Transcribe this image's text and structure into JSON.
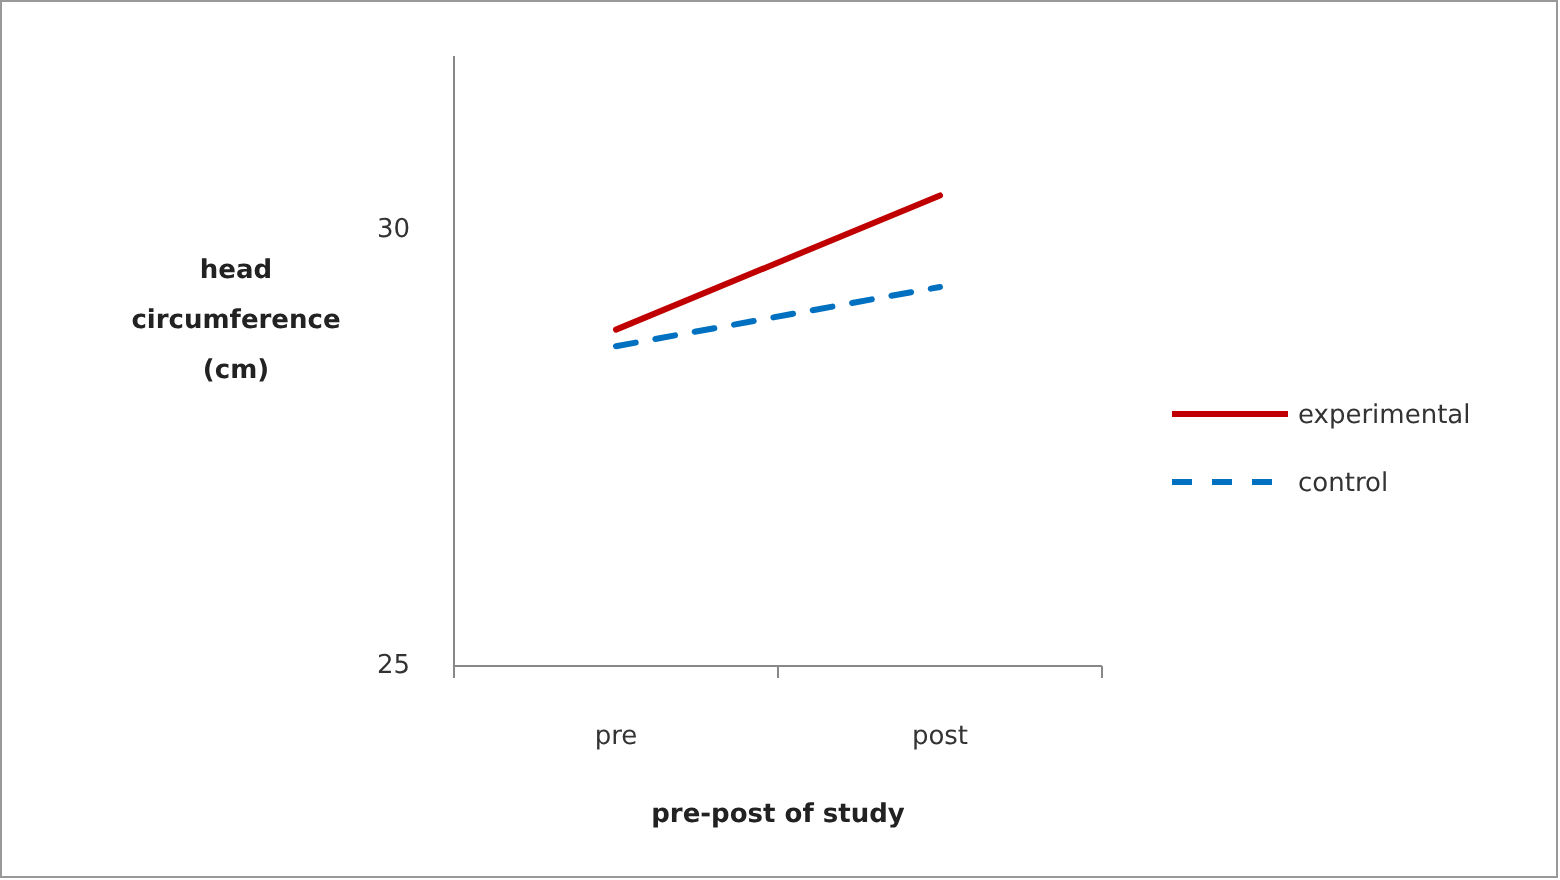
{
  "chart_data": {
    "type": "line",
    "xlabel": "pre-post of study",
    "ylabel": "head circumference (cm)",
    "categories": [
      "pre",
      "post"
    ],
    "series": [
      {
        "name": "experimental",
        "color": "#c00000",
        "values": [
          28.86,
          30.4
        ],
        "line_style": "solid"
      },
      {
        "name": "control",
        "color": "#0070c0",
        "values": [
          28.67,
          29.35
        ],
        "line_style": "dashed"
      }
    ],
    "ylim": [
      25,
      32
    ],
    "yticks": [
      25,
      30
    ],
    "grid": false,
    "legend": "right",
    "marker": "none"
  }
}
